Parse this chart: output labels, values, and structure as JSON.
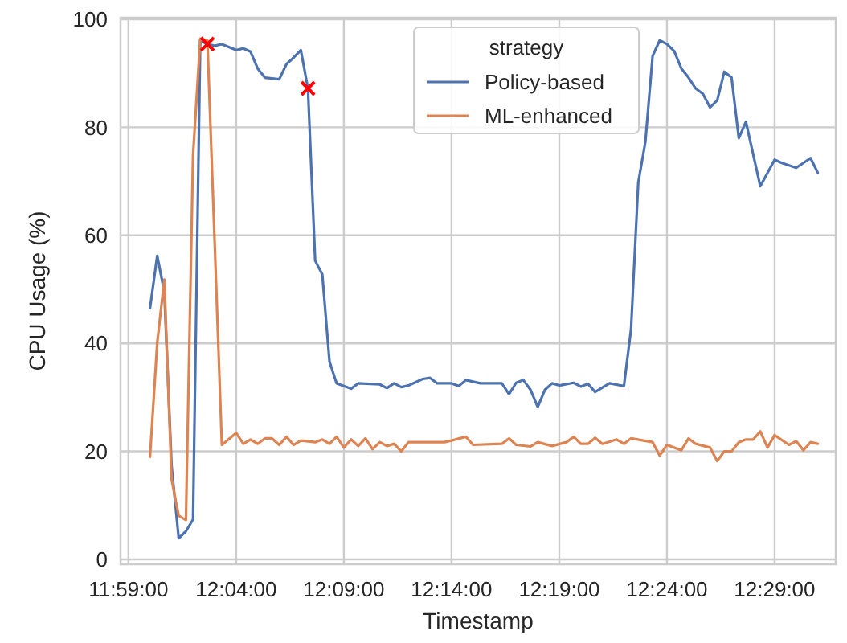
{
  "chart_data": {
    "type": "line",
    "xlabel": "Timestamp",
    "ylabel": "CPU Usage (%)",
    "legend_title": "strategy",
    "legend": "top",
    "grid": true,
    "line_style": "solid",
    "xlim": [
      11.9772,
      12.5306
    ],
    "ylim": [
      -0.9,
      100.3
    ],
    "xticks": [
      {
        "value": 11.9833,
        "label": "11:59:00"
      },
      {
        "value": 12.0667,
        "label": "12:04:00"
      },
      {
        "value": 12.15,
        "label": "12:09:00"
      },
      {
        "value": 12.2333,
        "label": "12:14:00"
      },
      {
        "value": 12.3167,
        "label": "12:19:00"
      },
      {
        "value": 12.4,
        "label": "12:24:00"
      },
      {
        "value": 12.4833,
        "label": "12:29:00"
      }
    ],
    "yticks": [
      0,
      20,
      40,
      60,
      80,
      100
    ],
    "series": [
      {
        "name": "Policy-based",
        "color": "#4c72b0",
        "x": [
          12.0,
          12.0056,
          12.0111,
          12.0167,
          12.0222,
          12.0278,
          12.0333,
          12.0389,
          12.0444,
          12.05,
          12.0556,
          12.0667,
          12.0722,
          12.0778,
          12.0833,
          12.0889,
          12.1,
          12.1056,
          12.1111,
          12.1167,
          12.1222,
          12.1278,
          12.1333,
          12.1389,
          12.1444,
          12.1556,
          12.1611,
          12.1778,
          12.1833,
          12.1889,
          12.1944,
          12.2,
          12.2111,
          12.2167,
          12.2222,
          12.2333,
          12.2389,
          12.2444,
          12.2556,
          12.2722,
          12.2778,
          12.2833,
          12.2889,
          12.2944,
          12.3,
          12.3056,
          12.3111,
          12.3167,
          12.3278,
          12.3333,
          12.3389,
          12.3444,
          12.3556,
          12.3667,
          12.3722,
          12.3778,
          12.3833,
          12.3889,
          12.3944,
          12.4,
          12.4056,
          12.4111,
          12.4167,
          12.4222,
          12.4278,
          12.4333,
          12.4389,
          12.4444,
          12.45,
          12.4556,
          12.4611,
          12.4722,
          12.4833,
          12.4889,
          12.5,
          12.5111,
          12.5167
        ],
        "values": [
          46.5,
          56.2,
          49.5,
          17.3,
          3.9,
          5.2,
          7.4,
          96.1,
          95.4,
          95.1,
          95.4,
          94.3,
          94.6,
          94,
          90.9,
          89.2,
          88.9,
          91.7,
          92.9,
          94.3,
          87.2,
          55.3,
          52.8,
          36.6,
          32.6,
          31.6,
          32.6,
          32.4,
          31.7,
          32.6,
          31.9,
          32.2,
          33.4,
          33.6,
          32.6,
          32.6,
          32.1,
          33.2,
          32.6,
          32.6,
          30.6,
          32.7,
          33.2,
          31.4,
          28.2,
          31.4,
          32.6,
          32.2,
          32.7,
          32,
          32.5,
          31,
          32.6,
          32.1,
          42.6,
          69.8,
          77.3,
          93.2,
          96.1,
          95.4,
          94.1,
          90.9,
          89.2,
          87.2,
          86.2,
          83.7,
          85,
          90.3,
          89.2,
          78,
          81,
          69.1,
          74,
          73.4,
          72.5,
          74.3,
          71.6
        ]
      },
      {
        "name": "ML-enhanced",
        "color": "#dd8452",
        "x": [
          12.0,
          12.0056,
          12.0111,
          12.0167,
          12.0222,
          12.0278,
          12.0333,
          12.0389,
          12.0444,
          12.05,
          12.0556,
          12.0667,
          12.0722,
          12.0778,
          12.0833,
          12.0889,
          12.0944,
          12.1,
          12.1056,
          12.1111,
          12.1167,
          12.1278,
          12.1333,
          12.1389,
          12.1444,
          12.15,
          12.1556,
          12.1611,
          12.1667,
          12.1722,
          12.1778,
          12.1833,
          12.1889,
          12.1944,
          12.2,
          12.2222,
          12.2278,
          12.2333,
          12.2444,
          12.25,
          12.2722,
          12.2778,
          12.2833,
          12.2944,
          12.3,
          12.3111,
          12.3222,
          12.3278,
          12.3333,
          12.3389,
          12.3444,
          12.35,
          12.3611,
          12.3667,
          12.3722,
          12.3889,
          12.3944,
          12.4,
          12.4111,
          12.4167,
          12.4222,
          12.4333,
          12.4389,
          12.4444,
          12.45,
          12.4556,
          12.4611,
          12.4667,
          12.4722,
          12.4778,
          12.4833,
          12.4944,
          12.5,
          12.5056,
          12.5111,
          12.5167
        ],
        "values": [
          19,
          40.1,
          51.8,
          14.8,
          8.1,
          7.3,
          74.8,
          96.4,
          96.1,
          58.9,
          21.2,
          23.4,
          21.4,
          22.2,
          21.4,
          22.4,
          22.4,
          21.2,
          22.7,
          21.2,
          22,
          21.7,
          22.2,
          21.4,
          22.7,
          20.7,
          22.2,
          21,
          22.4,
          20.4,
          21.7,
          21,
          21.4,
          20,
          21.7,
          21.7,
          21.7,
          22,
          22.7,
          21.2,
          21.4,
          22.4,
          21.2,
          20.9,
          21.7,
          21,
          21.7,
          22.7,
          21.4,
          21.4,
          22.5,
          21.4,
          22.2,
          21.4,
          22.4,
          21.7,
          19.2,
          21.2,
          20.2,
          22.4,
          21.4,
          20.7,
          18.2,
          20,
          20,
          21.7,
          22.2,
          22.2,
          23.7,
          20.7,
          23,
          21.2,
          21.9,
          20.2,
          21.7,
          21.4
        ]
      },
      {
        "type": "scatter",
        "color": "#ff0000",
        "marker": "cross",
        "x": [
          12.0444,
          12.1222
        ],
        "values": [
          95.4,
          87.2
        ]
      }
    ]
  }
}
